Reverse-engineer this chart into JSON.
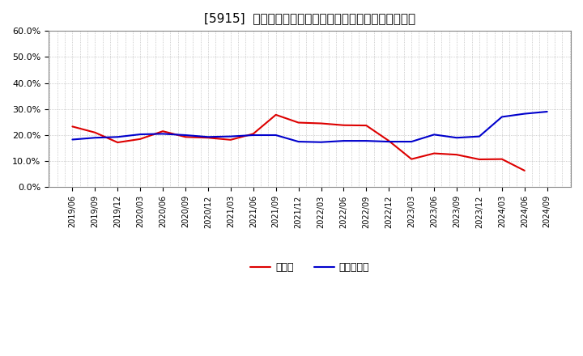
{
  "title": "[5915]  現頲金、有利子負債の総資産に対する比率の推移",
  "x_labels": [
    "2019/06",
    "2019/09",
    "2019/12",
    "2020/03",
    "2020/06",
    "2020/09",
    "2020/12",
    "2021/03",
    "2021/06",
    "2021/09",
    "2021/12",
    "2022/03",
    "2022/06",
    "2022/09",
    "2022/12",
    "2023/03",
    "2023/06",
    "2023/09",
    "2023/12",
    "2024/03",
    "2024/06",
    "2024/09"
  ],
  "cash": [
    0.233,
    0.21,
    0.172,
    0.185,
    0.215,
    0.193,
    0.19,
    0.182,
    0.205,
    0.278,
    0.248,
    0.245,
    0.238,
    0.237,
    0.178,
    0.108,
    0.13,
    0.125,
    0.107,
    0.108,
    0.064,
    null
  ],
  "debt": [
    0.183,
    0.19,
    0.193,
    0.203,
    0.205,
    0.2,
    0.193,
    0.195,
    0.2,
    0.2,
    0.175,
    0.173,
    0.178,
    0.178,
    0.175,
    0.175,
    0.202,
    0.19,
    0.195,
    0.27,
    0.282,
    0.29
  ],
  "cash_color": "#dd0000",
  "debt_color": "#0000cc",
  "background_color": "#ffffff",
  "plot_bg_color": "#ffffff",
  "grid_color": "#aaaaaa",
  "ylim": [
    0.0,
    0.6
  ],
  "yticks": [
    0.0,
    0.1,
    0.2,
    0.3,
    0.4,
    0.5,
    0.6
  ],
  "legend_cash": "現頲金",
  "legend_debt": "有利子負債"
}
